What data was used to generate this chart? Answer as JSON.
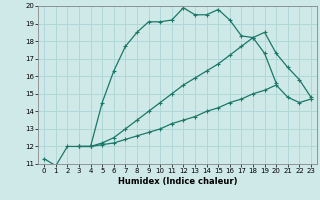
{
  "xlabel": "Humidex (Indice chaleur)",
  "xlim": [
    -0.5,
    23.5
  ],
  "ylim": [
    11,
    20
  ],
  "yticks": [
    11,
    12,
    13,
    14,
    15,
    16,
    17,
    18,
    19,
    20
  ],
  "xticks": [
    0,
    1,
    2,
    3,
    4,
    5,
    6,
    7,
    8,
    9,
    10,
    11,
    12,
    13,
    14,
    15,
    16,
    17,
    18,
    19,
    20,
    21,
    22,
    23
  ],
  "bg_color": "#cfe8e8",
  "grid_color": "#b0d8d8",
  "line_color": "#1a7868",
  "line1_x": [
    0,
    1,
    2,
    3,
    4,
    5,
    6,
    7,
    8,
    9,
    10,
    11,
    12,
    13,
    14,
    15,
    16,
    17,
    18,
    19,
    20
  ],
  "line1_y": [
    11.3,
    10.9,
    12.0,
    12.0,
    12.0,
    14.5,
    16.3,
    17.7,
    18.5,
    19.1,
    19.1,
    19.2,
    19.9,
    19.5,
    19.5,
    19.8,
    19.2,
    18.3,
    18.2,
    17.3,
    15.6
  ],
  "line2_x": [
    3,
    4,
    5,
    6,
    7,
    8,
    9,
    10,
    11,
    12,
    13,
    14,
    15,
    16,
    17,
    18,
    19,
    20,
    21,
    22,
    23
  ],
  "line2_y": [
    12.0,
    12.0,
    12.2,
    12.5,
    13.0,
    13.5,
    14.0,
    14.5,
    15.0,
    15.5,
    15.9,
    16.3,
    16.7,
    17.2,
    17.7,
    18.2,
    18.5,
    17.3,
    16.5,
    15.8,
    14.8
  ],
  "line3_x": [
    3,
    4,
    5,
    6,
    7,
    8,
    9,
    10,
    11,
    12,
    13,
    14,
    15,
    16,
    17,
    18,
    19,
    20,
    21,
    22,
    23
  ],
  "line3_y": [
    12.0,
    12.0,
    12.1,
    12.2,
    12.4,
    12.6,
    12.8,
    13.0,
    13.3,
    13.5,
    13.7,
    14.0,
    14.2,
    14.5,
    14.7,
    15.0,
    15.2,
    15.5,
    14.8,
    14.5,
    14.7
  ]
}
